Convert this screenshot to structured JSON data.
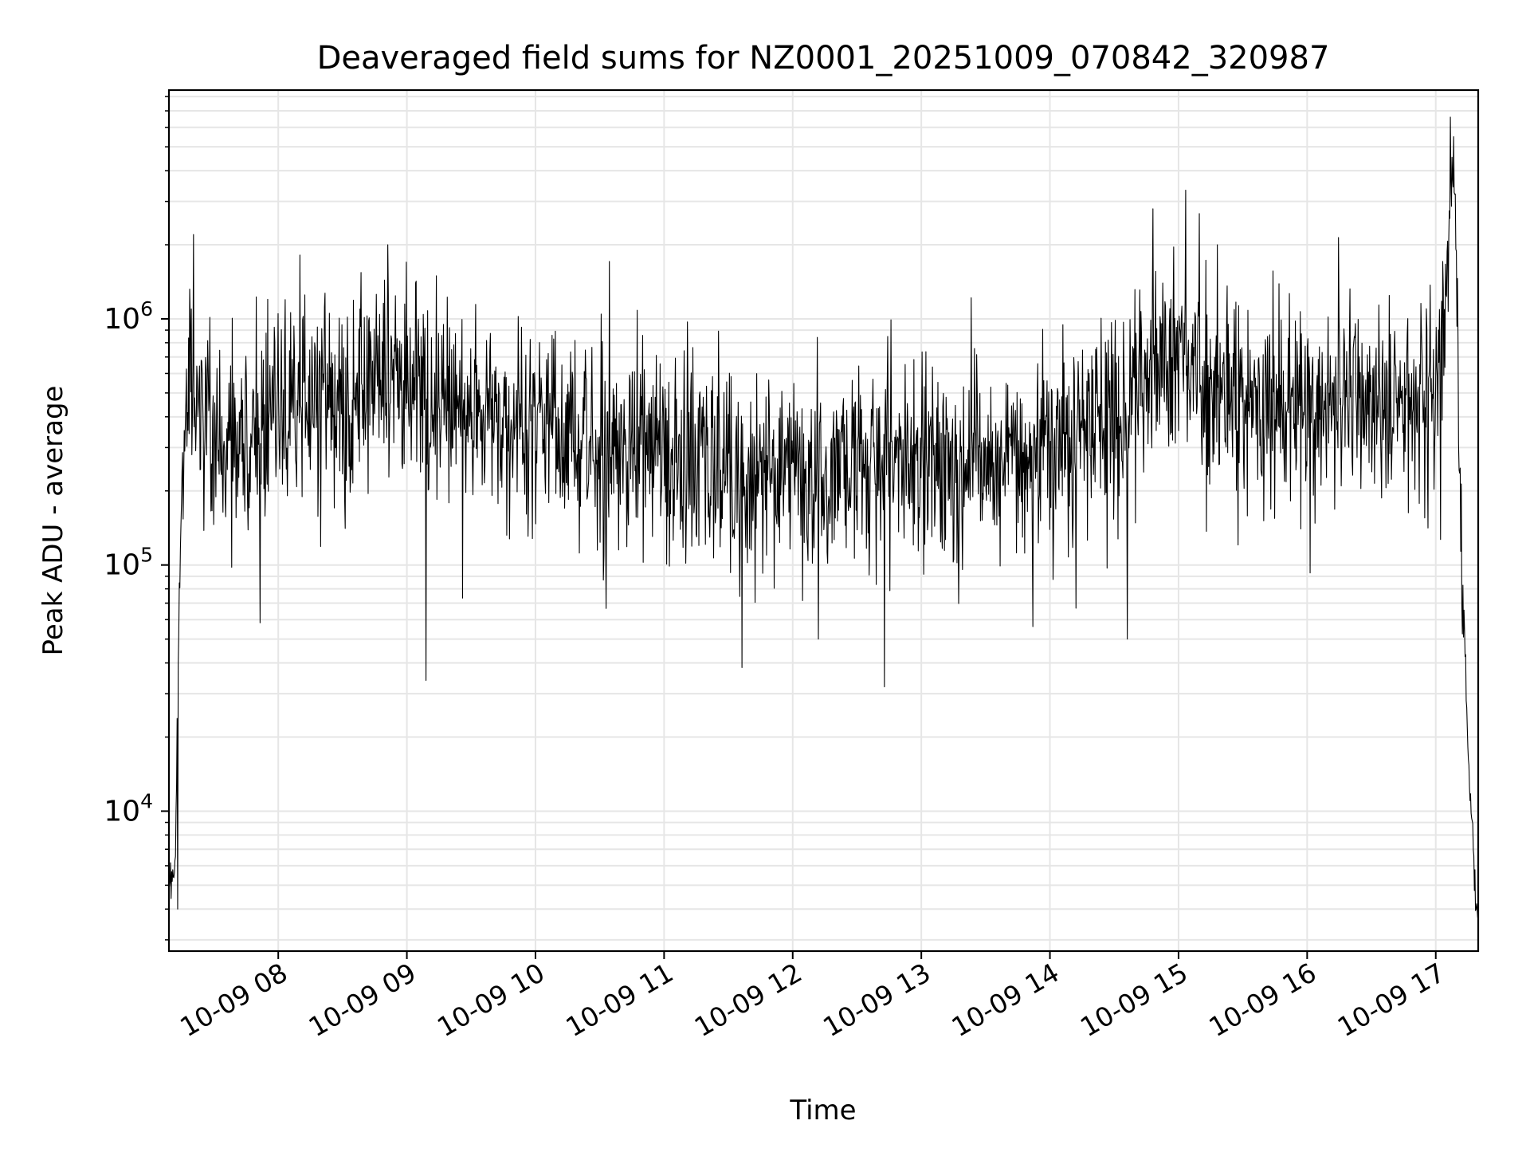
{
  "chart_data": {
    "type": "line",
    "title": "Deaveraged field sums for NZ0001_20251009_070842_320987",
    "xlabel": "Time",
    "ylabel": "Peak ADU - average",
    "y_scale": "log",
    "ylim": [
      2700,
      8500000
    ],
    "xlim_hours": [
      7.15,
      17.33
    ],
    "grid": true,
    "line_color": "#000000",
    "grid_color": "#e6e6e6",
    "x_ticks": [
      {
        "value": 8,
        "label": "10-09 08"
      },
      {
        "value": 9,
        "label": "10-09 09"
      },
      {
        "value": 10,
        "label": "10-09 10"
      },
      {
        "value": 11,
        "label": "10-09 11"
      },
      {
        "value": 12,
        "label": "10-09 12"
      },
      {
        "value": 13,
        "label": "10-09 13"
      },
      {
        "value": 14,
        "label": "10-09 14"
      },
      {
        "value": 15,
        "label": "10-09 15"
      },
      {
        "value": 16,
        "label": "10-09 16"
      },
      {
        "value": 17,
        "label": "10-09 17"
      }
    ],
    "y_ticks": [
      {
        "value": 10000,
        "base": "10",
        "exp": "4"
      },
      {
        "value": 100000,
        "base": "10",
        "exp": "5"
      },
      {
        "value": 1000000,
        "base": "10",
        "exp": "6"
      }
    ],
    "series": [
      {
        "name": "Peak ADU - average",
        "anchors_hours": [
          7.15,
          7.2,
          7.22,
          7.25,
          7.3,
          7.35,
          7.45,
          7.6,
          7.8,
          8.0,
          8.2,
          8.4,
          8.6,
          8.8,
          8.9,
          9.2,
          9.5,
          9.8,
          10.2,
          10.6,
          11.0,
          11.5,
          12.0,
          12.5,
          13.0,
          13.5,
          14.0,
          14.3,
          14.6,
          14.8,
          15.0,
          15.2,
          15.5,
          16.0,
          16.5,
          17.0,
          17.05,
          17.1,
          17.15,
          17.2,
          17.25,
          17.3,
          17.33
        ],
        "anchors_values": [
          5500,
          6000,
          40000,
          200000,
          600000,
          500000,
          350000,
          300000,
          320000,
          450000,
          500000,
          480000,
          420000,
          600000,
          650000,
          500000,
          400000,
          380000,
          350000,
          320000,
          280000,
          250000,
          230000,
          250000,
          280000,
          280000,
          300000,
          380000,
          450000,
          700000,
          650000,
          600000,
          450000,
          420000,
          480000,
          450000,
          700000,
          2000000,
          3500000,
          80000,
          20000,
          5000,
          3700
        ],
        "noise_sigma_log10": 0.2,
        "sample_count": 2400,
        "notable_peaks": [
          {
            "x": 7.34,
            "value": 2200000
          },
          {
            "x": 8.85,
            "value": 2000000
          },
          {
            "x": 14.8,
            "value": 2800000
          },
          {
            "x": 15.3,
            "value": 2000000
          },
          {
            "x": 17.14,
            "value": 5500000
          }
        ],
        "notable_dips": [
          {
            "x": 12.2,
            "value": 50000
          },
          {
            "x": 14.6,
            "value": 50000
          },
          {
            "x": 7.22,
            "value": 4000
          }
        ]
      }
    ]
  }
}
